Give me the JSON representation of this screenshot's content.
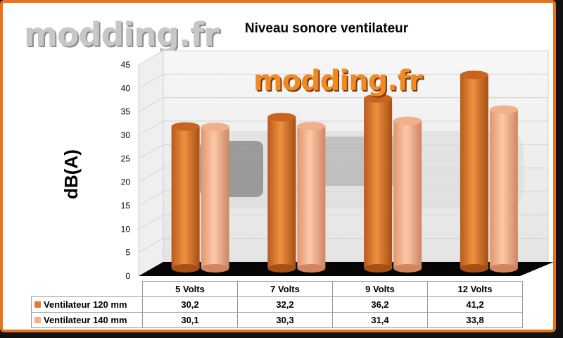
{
  "watermark": "modding.fr",
  "chart_data": {
    "type": "bar",
    "title": "Niveau sonore ventilateur",
    "xlabel": "",
    "ylabel": "dB(A)",
    "ylim": [
      0,
      45
    ],
    "yticks": [
      0,
      5,
      10,
      15,
      20,
      25,
      30,
      35,
      40,
      45
    ],
    "categories": [
      "5 Volts",
      "7 Volts",
      "9 Volts",
      "12 Volts"
    ],
    "series": [
      {
        "name": "Ventilateur 120 mm",
        "color": "#e07a30",
        "values": [
          30.2,
          32.2,
          36.2,
          41.2
        ],
        "labels": [
          "30,2",
          "32,2",
          "36,2",
          "41,2"
        ]
      },
      {
        "name": "Ventilateur 140 mm",
        "color": "#f5b08a",
        "values": [
          30.1,
          30.3,
          31.4,
          33.8
        ],
        "labels": [
          "30,1",
          "30,3",
          "31,4",
          "33,8"
        ]
      }
    ],
    "grid": true,
    "legend": "data-table"
  }
}
